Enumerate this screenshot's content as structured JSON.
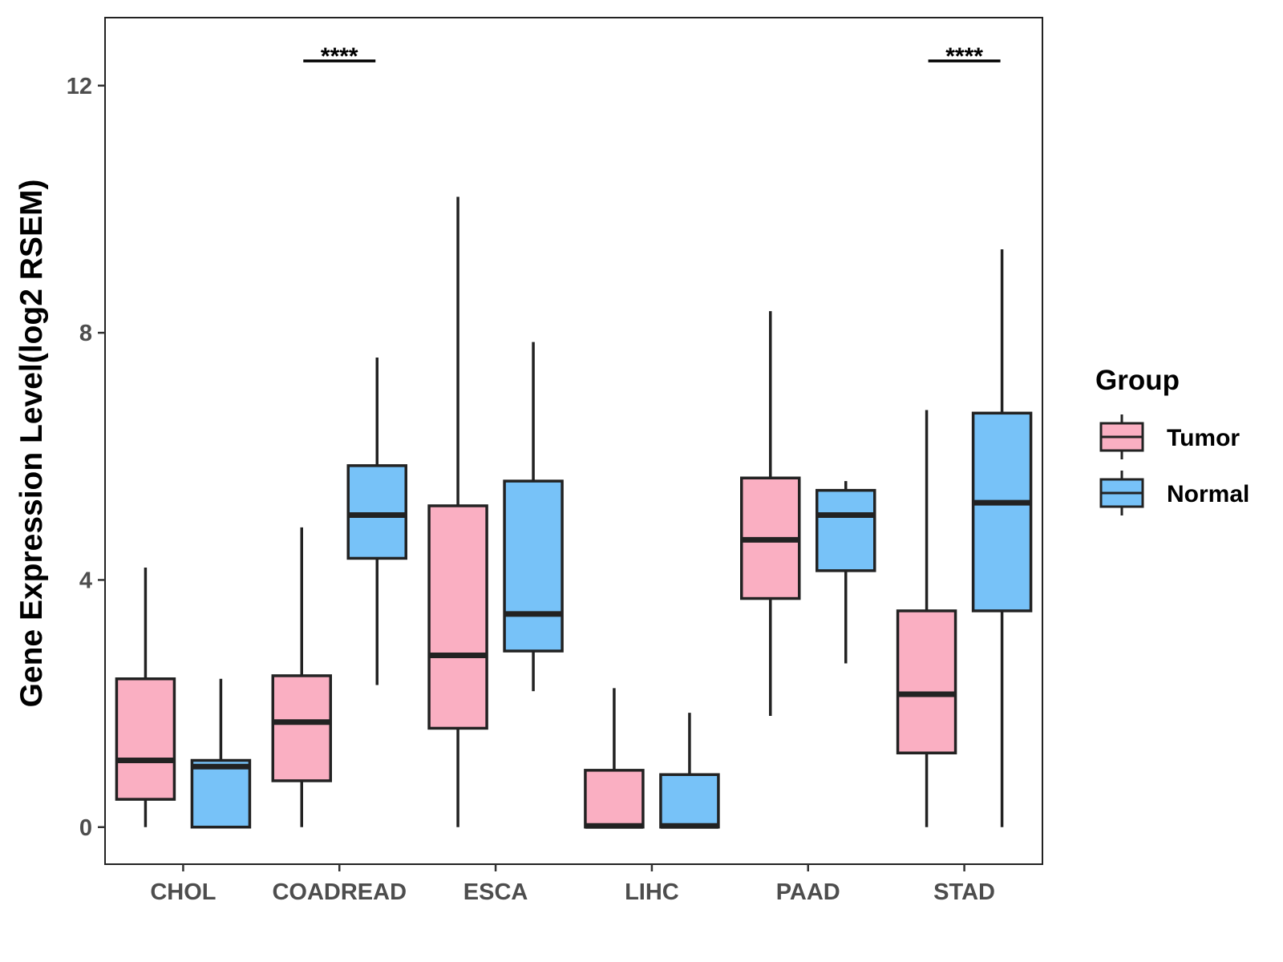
{
  "chart_data": {
    "type": "boxplot",
    "title": "",
    "xlabel": "",
    "ylabel": "Gene Expression Level(log2 RSEM)",
    "ylim": [
      -0.6,
      13.1
    ],
    "yticks": [
      0,
      4,
      8,
      12
    ],
    "grid": false,
    "categories": [
      "CHOL",
      "COADREAD",
      "ESCA",
      "LIHC",
      "PAAD",
      "STAD"
    ],
    "legend": {
      "title": "Group",
      "position": "right"
    },
    "colors": {
      "Tumor": "#FAAFC2",
      "Normal": "#77C2F8",
      "outline": "#222222"
    },
    "series": [
      {
        "name": "Tumor",
        "boxes": [
          {
            "min": 0.0,
            "q1": 0.45,
            "median": 1.08,
            "q3": 2.4,
            "max": 4.2
          },
          {
            "min": 0.0,
            "q1": 0.75,
            "median": 1.7,
            "q3": 2.45,
            "max": 4.85
          },
          {
            "min": 0.0,
            "q1": 1.6,
            "median": 2.78,
            "q3": 5.2,
            "max": 10.2
          },
          {
            "min": 0.0,
            "q1": 0.0,
            "median": 0.02,
            "q3": 0.92,
            "max": 2.25
          },
          {
            "min": 1.8,
            "q1": 3.7,
            "median": 4.65,
            "q3": 5.65,
            "max": 8.35
          },
          {
            "min": 0.0,
            "q1": 1.2,
            "median": 2.15,
            "q3": 3.5,
            "max": 6.75
          }
        ]
      },
      {
        "name": "Normal",
        "boxes": [
          {
            "min": 0.0,
            "q1": 0.0,
            "median": 0.98,
            "q3": 1.08,
            "max": 2.4
          },
          {
            "min": 2.3,
            "q1": 4.35,
            "median": 5.05,
            "q3": 5.85,
            "max": 7.6
          },
          {
            "min": 2.2,
            "q1": 2.85,
            "median": 3.45,
            "q3": 5.6,
            "max": 7.85
          },
          {
            "min": 0.0,
            "q1": 0.0,
            "median": 0.02,
            "q3": 0.85,
            "max": 1.85
          },
          {
            "min": 2.65,
            "q1": 4.15,
            "median": 5.05,
            "q3": 5.45,
            "max": 5.6
          },
          {
            "min": 0.0,
            "q1": 3.5,
            "median": 5.25,
            "q3": 6.7,
            "max": 9.35
          }
        ]
      }
    ],
    "annotations": [
      {
        "category": "COADREAD",
        "text": "****",
        "y": 12.4
      },
      {
        "category": "STAD",
        "text": "****",
        "y": 12.4
      }
    ]
  }
}
